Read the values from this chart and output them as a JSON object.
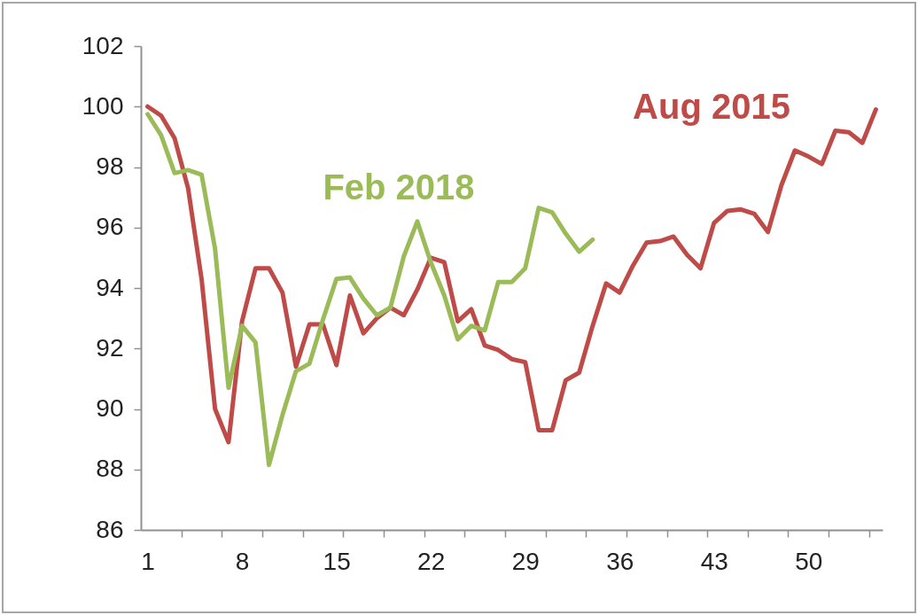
{
  "chart_data": {
    "type": "line",
    "x": [
      1,
      2,
      3,
      4,
      5,
      6,
      7,
      8,
      9,
      10,
      11,
      12,
      13,
      14,
      15,
      16,
      17,
      18,
      19,
      20,
      21,
      22,
      23,
      24,
      25,
      26,
      27,
      28,
      29,
      30,
      31,
      32,
      33,
      34,
      35,
      36,
      37,
      38,
      39,
      40,
      41,
      42,
      43,
      44,
      45,
      46,
      47,
      48,
      49,
      50,
      51,
      52,
      53,
      54,
      55
    ],
    "xlim": [
      0.5,
      55.5
    ],
    "xticks": [
      1,
      {
        "value": 3.5,
        "label": null
      },
      {
        "value": 6.5,
        "label": null
      },
      8,
      {
        "value": 9.5,
        "label": null
      },
      {
        "value": 12.5,
        "label": null
      },
      15,
      {
        "value": 15.5,
        "label": null
      },
      {
        "value": 18.5,
        "label": null
      },
      {
        "value": 21.5,
        "label": null
      },
      22,
      {
        "value": 24.5,
        "label": null
      },
      {
        "value": 27.5,
        "label": null
      },
      29,
      {
        "value": 30.5,
        "label": null
      },
      {
        "value": 33.5,
        "label": null
      },
      36,
      {
        "value": 36.5,
        "label": null
      },
      {
        "value": 39.5,
        "label": null
      },
      {
        "value": 42.5,
        "label": null
      },
      43,
      {
        "value": 45.5,
        "label": null
      },
      {
        "value": 48.5,
        "label": null
      },
      50,
      {
        "value": 51.5,
        "label": null
      },
      {
        "value": 54.5,
        "label": null
      }
    ],
    "ylim": [
      86,
      102
    ],
    "yticks": [
      86,
      88,
      90,
      92,
      94,
      96,
      98,
      100,
      102
    ],
    "grid": false,
    "legend": false,
    "marker": "none",
    "line_style": "solid",
    "series": [
      {
        "name": "Aug 2015",
        "color": "#be4b48",
        "values": [
          100.0,
          99.7,
          98.95,
          97.3,
          94.3,
          90.0,
          88.9,
          92.9,
          94.65,
          94.65,
          93.85,
          91.4,
          92.8,
          92.8,
          91.45,
          93.75,
          92.5,
          93.0,
          93.35,
          93.1,
          93.95,
          95.0,
          94.85,
          92.9,
          93.3,
          92.1,
          91.95,
          91.65,
          91.55,
          89.3,
          89.3,
          90.95,
          91.2,
          92.75,
          94.15,
          93.85,
          94.75,
          95.5,
          95.55,
          95.7,
          95.1,
          94.65,
          96.15,
          96.55,
          96.6,
          96.45,
          95.85,
          97.4,
          98.55,
          98.35,
          98.1,
          99.2,
          99.15,
          98.8,
          99.9
        ]
      },
      {
        "name": "Feb 2018",
        "color": "#9bbb59",
        "values": [
          99.75,
          99.05,
          97.8,
          97.9,
          97.75,
          95.3,
          90.7,
          92.75,
          92.2,
          88.15,
          89.8,
          91.25,
          91.5,
          92.95,
          94.3,
          94.35,
          93.65,
          93.1,
          93.35,
          95.05,
          96.2,
          94.85,
          93.75,
          92.3,
          92.75,
          92.6,
          94.2,
          94.2,
          94.65,
          96.65,
          96.5,
          95.8,
          95.2,
          95.6,
          null,
          null,
          null,
          null,
          null,
          null,
          null,
          null,
          null,
          null,
          null,
          null,
          null,
          null,
          null,
          null,
          null,
          null,
          null,
          null,
          null
        ]
      }
    ]
  }
}
